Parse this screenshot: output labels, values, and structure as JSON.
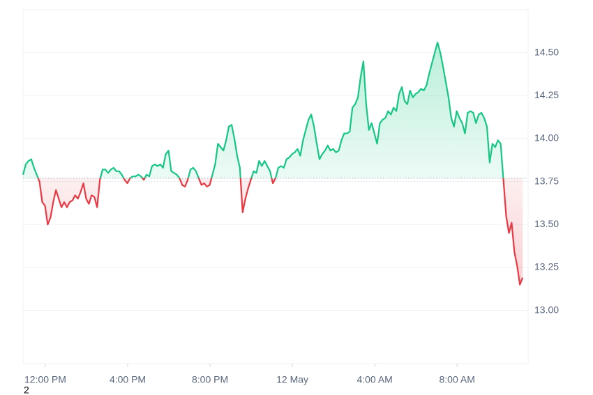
{
  "chart_data": {
    "type": "line",
    "note": "2",
    "xlim": [
      -65,
      1407
    ],
    "xticks": [
      {
        "value": 0,
        "label": "12:00 PM"
      },
      {
        "value": 240,
        "label": "4:00 PM"
      },
      {
        "value": 480,
        "label": "8:00 PM"
      },
      {
        "value": 720,
        "label": "12 May"
      },
      {
        "value": 960,
        "label": "4:00 AM"
      },
      {
        "value": 1200,
        "label": "8:00 AM"
      }
    ],
    "ylim": [
      12.69,
      14.75
    ],
    "yticks": [
      {
        "value": 13,
        "label": "13.00"
      },
      13.25,
      {
        "value": 13.5,
        "label": "13.50"
      },
      13.75,
      {
        "value": 14,
        "label": "14.00"
      },
      14.25,
      {
        "value": 14.5,
        "label": "14.50"
      }
    ],
    "baseline": 13.77,
    "grid": true,
    "up_color": "#16c784",
    "down_color": "#ea3943",
    "x": [
      -65,
      -57,
      -49,
      -41,
      -33,
      -25,
      -17,
      -9,
      -1,
      7,
      15,
      23,
      31,
      39,
      47,
      55,
      63,
      71,
      79,
      87,
      95,
      103,
      111,
      119,
      127,
      135,
      143,
      151,
      159,
      167,
      175,
      183,
      191,
      199,
      207,
      215,
      223,
      231,
      239,
      247,
      255,
      263,
      271,
      279,
      287,
      295,
      303,
      311,
      319,
      327,
      335,
      343,
      351,
      359,
      367,
      375,
      383,
      391,
      399,
      407,
      415,
      423,
      431,
      439,
      447,
      455,
      463,
      471,
      479,
      487,
      495,
      503,
      511,
      519,
      527,
      535,
      543,
      551,
      559,
      567,
      575,
      583,
      591,
      599,
      607,
      615,
      623,
      631,
      639,
      647,
      655,
      663,
      671,
      679,
      687,
      695,
      703,
      711,
      719,
      727,
      735,
      743,
      751,
      759,
      767,
      775,
      783,
      791,
      799,
      807,
      815,
      823,
      831,
      839,
      847,
      855,
      863,
      871,
      879,
      887,
      895,
      903,
      911,
      919,
      927,
      935,
      943,
      951,
      959,
      967,
      975,
      983,
      991,
      999,
      1007,
      1015,
      1023,
      1031,
      1039,
      1047,
      1055,
      1063,
      1071,
      1079,
      1087,
      1095,
      1103,
      1111,
      1119,
      1127,
      1135,
      1143,
      1151,
      1159,
      1167,
      1175,
      1183,
      1191,
      1199,
      1207,
      1215,
      1223,
      1231,
      1239,
      1247,
      1255,
      1263,
      1271,
      1279,
      1287,
      1295,
      1303,
      1311,
      1319,
      1327,
      1335,
      1343,
      1351,
      1359,
      1367,
      1375,
      1383,
      1391
    ],
    "series": [
      {
        "values": [
          13.79,
          13.85,
          13.87,
          13.88,
          13.83,
          13.79,
          13.75,
          13.63,
          13.61,
          13.5,
          13.54,
          13.63,
          13.7,
          13.65,
          13.6,
          13.63,
          13.6,
          13.63,
          13.64,
          13.67,
          13.65,
          13.69,
          13.74,
          13.65,
          13.62,
          13.67,
          13.66,
          13.6,
          13.76,
          13.82,
          13.82,
          13.8,
          13.82,
          13.83,
          13.81,
          13.81,
          13.79,
          13.76,
          13.74,
          13.77,
          13.78,
          13.78,
          13.79,
          13.78,
          13.76,
          13.79,
          13.78,
          13.84,
          13.85,
          13.84,
          13.85,
          13.83,
          13.91,
          13.93,
          13.81,
          13.8,
          13.79,
          13.77,
          13.73,
          13.72,
          13.76,
          13.82,
          13.83,
          13.81,
          13.77,
          13.73,
          13.74,
          13.72,
          13.73,
          13.79,
          13.85,
          13.97,
          13.95,
          13.93,
          13.99,
          14.07,
          14.08,
          14.0,
          13.9,
          13.83,
          13.57,
          13.65,
          13.71,
          13.76,
          13.81,
          13.8,
          13.87,
          13.84,
          13.87,
          13.84,
          13.81,
          13.74,
          13.77,
          13.83,
          13.84,
          13.83,
          13.88,
          13.89,
          13.91,
          13.92,
          13.94,
          13.9,
          13.99,
          14.05,
          14.11,
          14.14,
          14.07,
          13.97,
          13.88,
          13.91,
          13.93,
          13.96,
          13.93,
          13.94,
          13.92,
          13.93,
          13.99,
          14.03,
          14.03,
          14.04,
          14.18,
          14.2,
          14.24,
          14.36,
          14.45,
          14.2,
          14.05,
          14.09,
          14.03,
          13.97,
          14.09,
          14.11,
          14.12,
          14.16,
          14.14,
          14.18,
          14.16,
          14.26,
          14.3,
          14.22,
          14.2,
          14.28,
          14.24,
          14.26,
          14.27,
          14.29,
          14.28,
          14.31,
          14.38,
          14.44,
          14.5,
          14.56,
          14.5,
          14.42,
          14.33,
          14.24,
          14.12,
          14.07,
          14.16,
          14.12,
          14.09,
          14.03,
          14.15,
          14.16,
          14.15,
          14.09,
          14.14,
          14.15,
          14.12,
          14.07,
          13.86,
          13.97,
          13.95,
          13.99,
          13.97,
          13.76,
          13.55,
          13.45,
          13.51,
          13.34,
          13.26,
          13.15,
          13.19
        ]
      }
    ]
  }
}
